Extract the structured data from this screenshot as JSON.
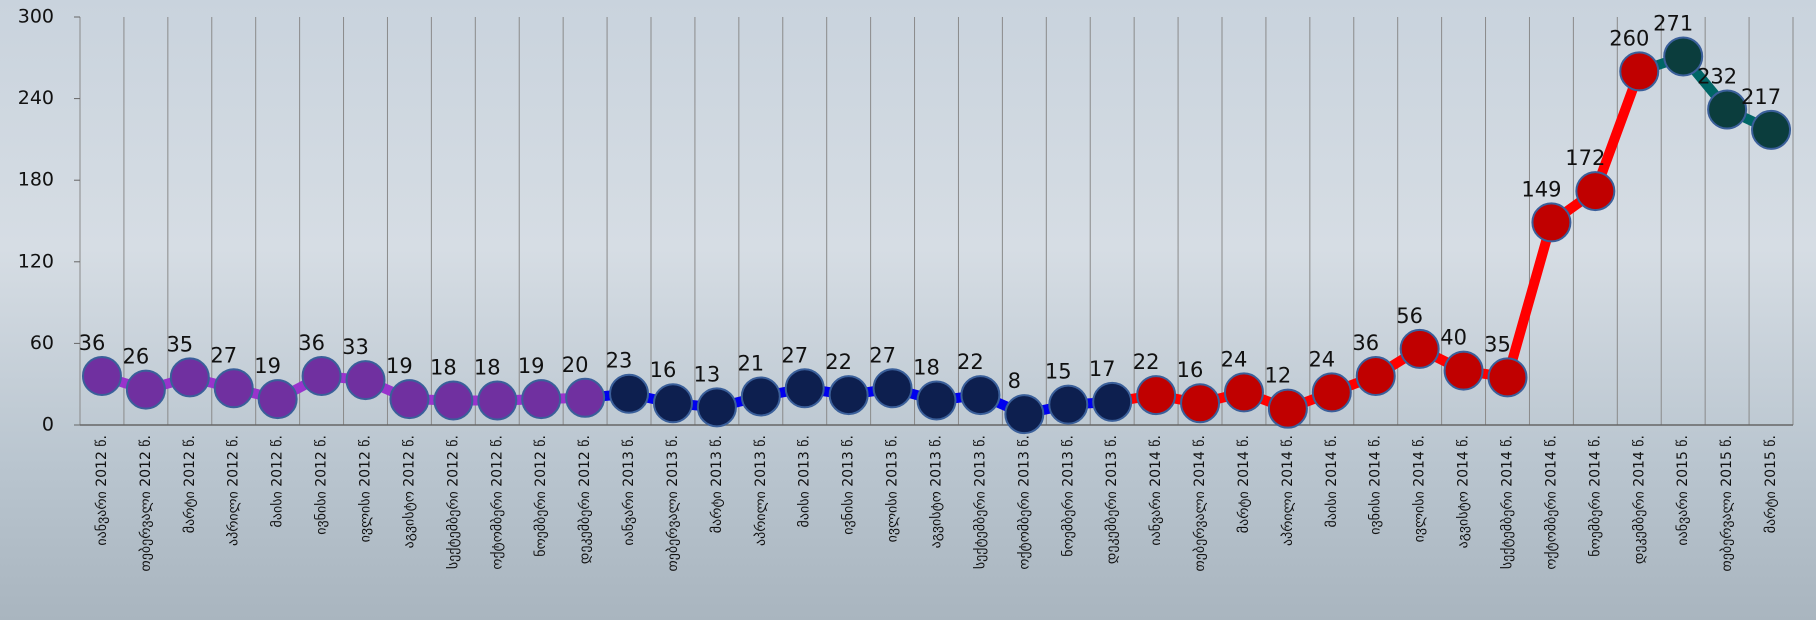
{
  "chart_data": {
    "type": "line",
    "categories": [
      "იანვარი 2012 წ.",
      "თებერვალი 2012 წ.",
      "მარტი 2012 წ.",
      "აპრილი 2012 წ.",
      "მაისი 2012 წ.",
      "ივნისი 2012 წ.",
      "ივლისი 2012 წ.",
      "აგვისტო 2012 წ.",
      "სექტემბერი 2012 წ.",
      "ოქტომბერი 2012 წ.",
      "ნოემბერი 2012 წ.",
      "დეკემბერი 2012 წ.",
      "იანვარი 2013 წ.",
      "თებერვალი 2013 წ.",
      "მარტი 2013 წ.",
      "აპრილი 2013 წ.",
      "მაისი 2013 წ.",
      "ივნისი 2013 წ.",
      "ივლისი 2013 წ.",
      "აგვისტო 2013 წ.",
      "სექტემბერი 2013 წ.",
      "ოქტომბერი 2013 წ.",
      "ნოემბერი 2013 წ.",
      "დეკემბერი 2013 წ.",
      "იანვარი 2014 წ.",
      "თებერვალი 2014 წ.",
      "მარტი 2014 წ.",
      "აპრილი 2014 წ.",
      "მაისი 2014 წ.",
      "ივნისი 2014 წ.",
      "ივლისი 2014 წ.",
      "აგვისტო 2014 წ.",
      "სექტემბერი 2014 წ.",
      "ოქტომბერი 2014 წ.",
      "ნოემბერი 2014 წ.",
      "დეკემბერი 2014 წ.",
      "იანვარი 2015 წ.",
      "თებერვალი 2015 წ.",
      "მარტი 2015 წ."
    ],
    "series": [
      {
        "color": "#9933cc",
        "marker_color": "#7030a0",
        "values": [
          36,
          26,
          35,
          27,
          19,
          36,
          33,
          19,
          18,
          18,
          19,
          20,
          null,
          null,
          null,
          null,
          null,
          null,
          null,
          null,
          null,
          null,
          null,
          null,
          null,
          null,
          null,
          null,
          null,
          null,
          null,
          null,
          null,
          null,
          null,
          null,
          null,
          null,
          null
        ]
      },
      {
        "color": "#0000ee",
        "marker_color": "#0d1f4f",
        "values": [
          null,
          null,
          null,
          null,
          null,
          null,
          null,
          null,
          null,
          null,
          null,
          null,
          23,
          16,
          13,
          21,
          27,
          22,
          27,
          18,
          22,
          8,
          15,
          17,
          null,
          null,
          null,
          null,
          null,
          null,
          null,
          null,
          null,
          null,
          null,
          null,
          null,
          null,
          null
        ]
      },
      {
        "color": "#ff0000",
        "marker_color": "#c00000",
        "values": [
          null,
          null,
          null,
          null,
          null,
          null,
          null,
          null,
          null,
          null,
          null,
          null,
          null,
          null,
          null,
          null,
          null,
          null,
          null,
          null,
          null,
          null,
          null,
          null,
          22,
          16,
          24,
          12,
          24,
          36,
          56,
          40,
          35,
          149,
          172,
          260,
          null,
          null,
          null
        ]
      },
      {
        "color": "#006666",
        "marker_color": "#0b3d3d",
        "values": [
          null,
          null,
          null,
          null,
          null,
          null,
          null,
          null,
          null,
          null,
          null,
          null,
          null,
          null,
          null,
          null,
          null,
          null,
          null,
          null,
          null,
          null,
          null,
          null,
          null,
          null,
          null,
          null,
          null,
          null,
          null,
          null,
          null,
          null,
          null,
          null,
          271,
          232,
          217
        ]
      }
    ],
    "ylim": [
      0,
      300
    ],
    "yticks": [
      0,
      60,
      120,
      180,
      240,
      300
    ],
    "grid": "x"
  }
}
